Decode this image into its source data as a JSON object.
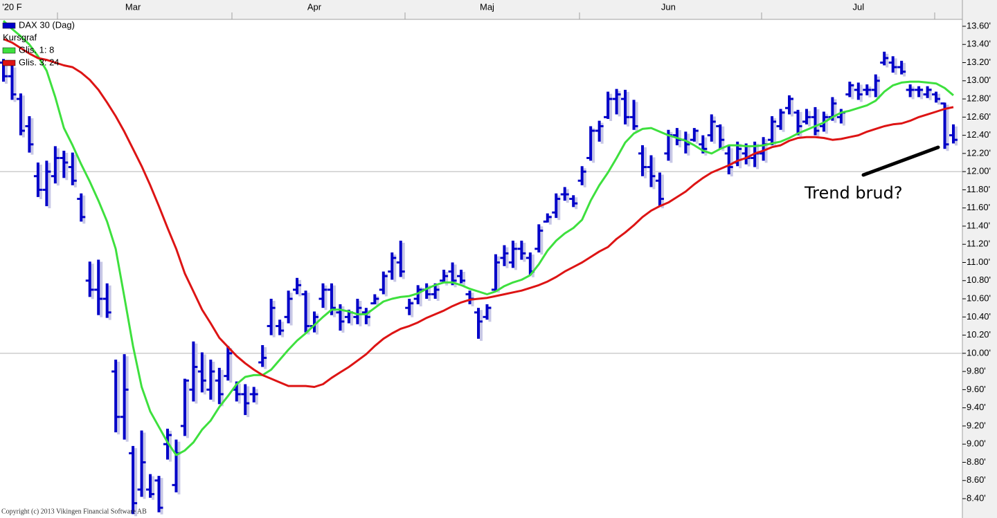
{
  "chart_data": {
    "type": "ohlc",
    "categories": [
      null,
      "'20 F",
      null,
      null,
      null,
      null,
      null,
      null,
      null,
      null,
      null,
      null,
      null,
      null,
      null,
      "Mar",
      null,
      null,
      null,
      null,
      null,
      null,
      null,
      null,
      null,
      null,
      null,
      null,
      null,
      null,
      null,
      null,
      null,
      null,
      null,
      null,
      "Apr",
      null,
      null,
      null,
      null,
      null,
      null,
      null,
      null,
      null,
      null,
      null,
      null,
      null,
      null,
      null,
      null,
      null,
      null,
      null,
      "Maj",
      null,
      null,
      null,
      null,
      null,
      null,
      null,
      null,
      null,
      null,
      null,
      null,
      null,
      null,
      null,
      null,
      null,
      null,
      null,
      null,
      "Jun",
      null,
      null,
      null,
      null,
      null,
      null,
      null,
      null,
      null,
      null,
      null,
      null,
      null,
      null,
      null,
      null,
      null,
      null,
      null,
      null,
      null,
      "Jul",
      null,
      null,
      null,
      null,
      null,
      null,
      null,
      null,
      null,
      null,
      null
    ],
    "legend_heading": "Kursgraf",
    "series": [
      {
        "name": "DAX 30 (Dag)",
        "type": "ohlc",
        "color": "#0000c8",
        "high": [
          13240,
          13170,
          12860,
          12610,
          12100,
          12120,
          12280,
          12230,
          12210,
          11760,
          11010,
          11030,
          10770,
          9930,
          9990,
          8980,
          9150,
          8670,
          8650,
          9170,
          9050,
          9720,
          10130,
          10010,
          9930,
          9840,
          10080,
          9690,
          9660,
          9630,
          10090,
          10600,
          10370,
          10690,
          10830,
          10690,
          10460,
          10770,
          10770,
          10540,
          10480,
          10600,
          10500,
          10650,
          10900,
          11110,
          11240,
          10600,
          10750,
          10770,
          10770,
          10920,
          11000,
          10920,
          10690,
          10500,
          10540,
          11090,
          11190,
          11240,
          11240,
          11110,
          11420,
          11540,
          11760,
          11830,
          11740,
          12060,
          12500,
          12560,
          12880,
          12910,
          12900,
          12790,
          12290,
          12180,
          11990,
          12460,
          12480,
          12440,
          12480,
          12400,
          12630,
          12520,
          12280,
          12330,
          12310,
          12330,
          12380,
          12610,
          12690,
          12840,
          12680,
          12690,
          12710,
          12660,
          12820,
          12690,
          12990,
          12980,
          12960,
          13070,
          13320,
          13270,
          13220,
          12960,
          12940,
          12940,
          12880,
          12760,
          12520
        ],
        "low": [
          12990,
          12790,
          12400,
          12210,
          11720,
          11620,
          11870,
          11930,
          11850,
          11450,
          10620,
          10420,
          10390,
          9130,
          9050,
          8230,
          8420,
          8410,
          8250,
          8830,
          8470,
          9090,
          9470,
          9570,
          9490,
          9440,
          9700,
          9470,
          9320,
          9460,
          9850,
          10200,
          10200,
          10330,
          10650,
          10230,
          10230,
          10500,
          10420,
          10250,
          10330,
          10320,
          10320,
          10540,
          10650,
          10810,
          10840,
          10420,
          10540,
          10600,
          10600,
          10770,
          10750,
          10770,
          10540,
          10160,
          10370,
          10690,
          10960,
          10940,
          11030,
          10860,
          11110,
          11440,
          11490,
          11680,
          11610,
          11850,
          12120,
          12330,
          12580,
          12630,
          12520,
          12460,
          11950,
          11830,
          11620,
          12120,
          12290,
          12200,
          12330,
          12200,
          12330,
          12250,
          11970,
          12060,
          12080,
          12050,
          12120,
          12290,
          12460,
          12630,
          12400,
          12520,
          12400,
          12440,
          12560,
          12530,
          12820,
          12790,
          12840,
          12820,
          13170,
          13090,
          13070,
          12820,
          12820,
          12810,
          12760,
          12250,
          12310
        ],
        "open": [
          13200,
          13050,
          12800,
          12500,
          11950,
          11800,
          11950,
          12150,
          12050,
          11700,
          10800,
          10700,
          10600,
          9800,
          9300,
          8900,
          8500,
          8500,
          8600,
          9000,
          8550,
          9200,
          9600,
          9800,
          9600,
          9700,
          9750,
          9600,
          9550,
          9550,
          9900,
          10300,
          10300,
          10400,
          10700,
          10650,
          10300,
          10600,
          10700,
          10450,
          10400,
          10400,
          10450,
          10550,
          10700,
          10900,
          11000,
          10500,
          10600,
          10700,
          10650,
          10800,
          10900,
          10850,
          10650,
          10450,
          10400,
          10700,
          11050,
          11000,
          11150,
          11050,
          11150,
          11450,
          11550,
          11750,
          11700,
          11900,
          12150,
          12450,
          12600,
          12800,
          12800,
          12600,
          12200,
          12050,
          11900,
          12200,
          12400,
          12350,
          12350,
          12300,
          12400,
          12500,
          12200,
          12100,
          12200,
          12150,
          12200,
          12350,
          12500,
          12700,
          12650,
          12550,
          12600,
          12500,
          12600,
          12600,
          12850,
          12900,
          12900,
          12900,
          13200,
          13200,
          13150,
          12900,
          12900,
          12850,
          12850,
          12750,
          12400
        ],
        "close": [
          13050,
          12850,
          12450,
          12300,
          11800,
          12000,
          12150,
          12100,
          11900,
          11500,
          10700,
          10600,
          10450,
          9300,
          9600,
          8350,
          8800,
          8450,
          8300,
          9100,
          8900,
          9700,
          9850,
          9700,
          9800,
          9550,
          10000,
          9550,
          9450,
          9550,
          9950,
          10500,
          10250,
          10600,
          10750,
          10300,
          10400,
          10700,
          10500,
          10350,
          10450,
          10500,
          10400,
          10600,
          10850,
          11050,
          10900,
          10550,
          10700,
          10650,
          10700,
          10850,
          10800,
          10800,
          10600,
          10350,
          10500,
          11000,
          11100,
          11150,
          11100,
          10900,
          11350,
          11500,
          11700,
          11750,
          11650,
          12000,
          12450,
          12500,
          12800,
          12850,
          12600,
          12500,
          12050,
          11950,
          11700,
          12400,
          12350,
          12300,
          12450,
          12250,
          12550,
          12350,
          12050,
          12250,
          12150,
          12200,
          12300,
          12550,
          12650,
          12800,
          12500,
          12600,
          12450,
          12600,
          12750,
          12650,
          12950,
          12850,
          12900,
          13000,
          13250,
          13150,
          13100,
          12900,
          12900,
          12900,
          12800,
          12300,
          12350
        ]
      },
      {
        "name": "Glis. 1: 8",
        "type": "line",
        "color": "#3ee03e",
        "values": [
          13660,
          13570,
          13490,
          13400,
          13270,
          13110,
          12820,
          12480,
          12290,
          12080,
          11890,
          11680,
          11450,
          11150,
          10620,
          10080,
          9630,
          9360,
          9190,
          9020,
          8880,
          8930,
          9020,
          9160,
          9260,
          9410,
          9530,
          9660,
          9740,
          9760,
          9760,
          9820,
          9930,
          10040,
          10140,
          10220,
          10310,
          10400,
          10480,
          10480,
          10460,
          10430,
          10430,
          10500,
          10570,
          10600,
          10620,
          10630,
          10660,
          10710,
          10750,
          10780,
          10780,
          10750,
          10710,
          10680,
          10650,
          10680,
          10740,
          10780,
          10810,
          10860,
          10980,
          11130,
          11240,
          11320,
          11380,
          11470,
          11680,
          11850,
          11990,
          12150,
          12320,
          12420,
          12470,
          12480,
          12440,
          12400,
          12370,
          12340,
          12290,
          12230,
          12200,
          12250,
          12290,
          12290,
          12280,
          12280,
          12290,
          12310,
          12330,
          12370,
          12420,
          12460,
          12500,
          12540,
          12600,
          12650,
          12670,
          12700,
          12730,
          12780,
          12880,
          12950,
          12980,
          12990,
          12990,
          12980,
          12970,
          12920,
          12840
        ]
      },
      {
        "name": "Glis. 3: 24",
        "type": "line",
        "color": "#dd1414",
        "values": [
          13460,
          13420,
          13360,
          13300,
          13250,
          13230,
          13200,
          13170,
          13150,
          13090,
          13010,
          12900,
          12760,
          12610,
          12440,
          12250,
          12060,
          11850,
          11620,
          11380,
          11150,
          10880,
          10680,
          10480,
          10330,
          10170,
          10070,
          9970,
          9890,
          9820,
          9760,
          9720,
          9680,
          9640,
          9640,
          9640,
          9630,
          9660,
          9730,
          9790,
          9850,
          9920,
          9990,
          10080,
          10160,
          10220,
          10270,
          10300,
          10340,
          10390,
          10430,
          10470,
          10520,
          10560,
          10590,
          10600,
          10610,
          10630,
          10650,
          10670,
          10690,
          10720,
          10750,
          10790,
          10840,
          10900,
          10950,
          11000,
          11060,
          11120,
          11170,
          11260,
          11330,
          11410,
          11500,
          11570,
          11620,
          11660,
          11720,
          11780,
          11860,
          11930,
          11990,
          12030,
          12070,
          12120,
          12150,
          12200,
          12230,
          12270,
          12290,
          12340,
          12370,
          12380,
          12380,
          12370,
          12350,
          12360,
          12380,
          12400,
          12440,
          12470,
          12500,
          12520,
          12530,
          12560,
          12600,
          12630,
          12660,
          12690,
          12710
        ]
      }
    ],
    "ylim": [
      8187,
      13676
    ],
    "yticks": [
      {
        "value": 13600,
        "label": "13.60'"
      },
      {
        "value": 13400,
        "label": "13.40'"
      },
      {
        "value": 13200,
        "label": "13.20'"
      },
      {
        "value": 13000,
        "label": "13.00'"
      },
      {
        "value": 12800,
        "label": "12.80'"
      },
      {
        "value": 12600,
        "label": "12.60'"
      },
      {
        "value": 12400,
        "label": "12.40'"
      },
      {
        "value": 12200,
        "label": "12.20'"
      },
      {
        "value": 12000,
        "label": "12.00'"
      },
      {
        "value": 11800,
        "label": "11.80'"
      },
      {
        "value": 11600,
        "label": "11.60'"
      },
      {
        "value": 11400,
        "label": "11.40'"
      },
      {
        "value": 11200,
        "label": "11.20'"
      },
      {
        "value": 11000,
        "label": "11.00'"
      },
      {
        "value": 10800,
        "label": "10.80'"
      },
      {
        "value": 10600,
        "label": "10.60'"
      },
      {
        "value": 10400,
        "label": "10.40'"
      },
      {
        "value": 10200,
        "label": "10.20'"
      },
      {
        "value": 10000,
        "label": "10.00'"
      },
      {
        "value": 9800,
        "label": "9.80'"
      },
      {
        "value": 9600,
        "label": "9.60'"
      },
      {
        "value": 9400,
        "label": "9.40'"
      },
      {
        "value": 9200,
        "label": "9.20'"
      },
      {
        "value": 9000,
        "label": "9.00'"
      },
      {
        "value": 8800,
        "label": "8.80'"
      },
      {
        "value": 8600,
        "label": "8.60'"
      },
      {
        "value": 8400,
        "label": "8.40'"
      }
    ],
    "ygrid": [
      12000,
      10000
    ],
    "annotation": "Trend brud?",
    "footer": "Copyright (c) 2013 Vikingen Financial Software AB"
  }
}
